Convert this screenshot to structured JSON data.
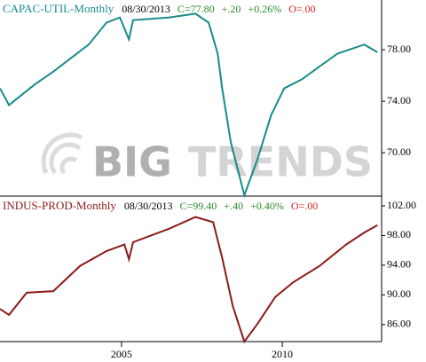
{
  "watermark": [
    "BIG",
    "TRENDS"
  ],
  "chart_data": [
    {
      "type": "line",
      "title": "CAPAC-UTIL-Monthly",
      "title_color": "#1a8a8a",
      "quote": [
        {
          "text": "08/30/2013",
          "color": "#000000"
        },
        {
          "text": "C=77.80",
          "color": "#2a8a2a"
        },
        {
          "text": "+.20",
          "color": "#2a8a2a"
        },
        {
          "text": "+0.26%",
          "color": "#2a8a2a"
        },
        {
          "text": "O=.00",
          "color": "#d02020"
        }
      ],
      "x": [
        2001.22,
        2001.5,
        2002.3,
        2002.88,
        2003.98,
        2004.53,
        2004.95,
        2005.23,
        2005.36,
        2006.47,
        2007.3,
        2007.71,
        2007.99,
        2008.13,
        2008.4,
        2008.82,
        2009.23,
        2009.65,
        2010.06,
        2010.61,
        2011.16,
        2011.72,
        2012.55,
        2012.96
      ],
      "values": [
        75.0,
        73.7,
        75.3,
        76.3,
        78.4,
        80.1,
        80.5,
        78.8,
        80.3,
        80.5,
        80.8,
        80.1,
        77.7,
        75.0,
        70.8,
        66.7,
        69.5,
        72.9,
        75.0,
        75.7,
        76.7,
        77.7,
        78.4,
        77.8
      ],
      "color": "#1a8a8a",
      "xlim": [
        2001.22,
        2013.09
      ],
      "ylim": [
        66.7,
        81.86
      ],
      "yticks": [
        {
          "value": 70,
          "label": "70.00"
        },
        {
          "value": 74,
          "label": "74.00"
        },
        {
          "value": 78,
          "label": "78.00"
        }
      ]
    },
    {
      "type": "line",
      "title": "INDUS-PROD-Monthly",
      "title_color": "#8b1a1a",
      "quote": [
        {
          "text": "08/30/2013",
          "color": "#000000"
        },
        {
          "text": "C=99.40",
          "color": "#2a8a2a"
        },
        {
          "text": "+.40",
          "color": "#2a8a2a"
        },
        {
          "text": "+0.40%",
          "color": "#2a8a2a"
        },
        {
          "text": "O=.00",
          "color": "#d02020"
        }
      ],
      "x": [
        2001.22,
        2001.5,
        2002.05,
        2002.88,
        2003.71,
        2004.53,
        2005.09,
        2005.23,
        2005.36,
        2006.47,
        2007.3,
        2007.85,
        2008.13,
        2008.46,
        2008.82,
        2009.23,
        2009.78,
        2010.34,
        2011.16,
        2011.99,
        2012.55,
        2012.96
      ],
      "values": [
        88.1,
        87.3,
        90.3,
        90.5,
        93.9,
        95.9,
        96.8,
        94.8,
        97.1,
        98.9,
        100.5,
        99.8,
        95.0,
        88.5,
        83.7,
        86.1,
        89.7,
        91.7,
        93.9,
        96.8,
        98.4,
        99.4
      ],
      "color": "#8b1a1a",
      "xlim": [
        2001.22,
        2013.09
      ],
      "ylim": [
        83.7,
        103.2
      ],
      "yticks": [
        {
          "value": 86,
          "label": "86.00"
        },
        {
          "value": 90,
          "label": "90.00"
        },
        {
          "value": 94,
          "label": "94.00"
        },
        {
          "value": 98,
          "label": "98.00"
        },
        {
          "value": 102,
          "label": "102.00"
        }
      ],
      "xticks": [
        2005,
        2010
      ]
    }
  ]
}
